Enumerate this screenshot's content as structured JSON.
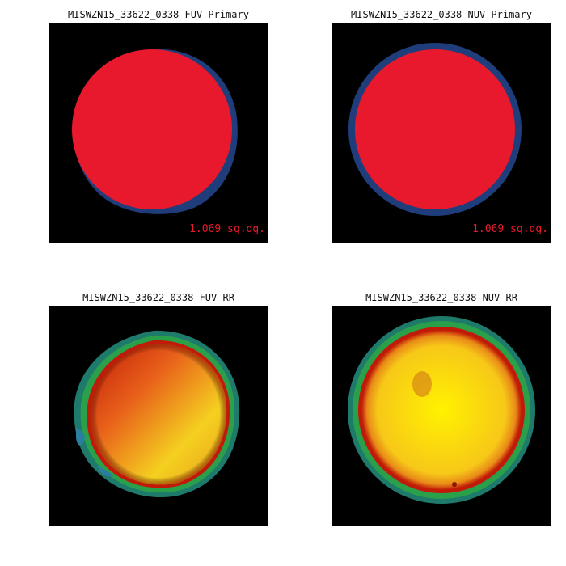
{
  "panels": [
    {
      "title": "MISWZN15_33622_0338 FUV Primary",
      "area_label": "1.069 sq.dg."
    },
    {
      "title": "MISWZN15_33622_0338 NUV Primary",
      "area_label": "1.069 sq.dg."
    },
    {
      "title": "MISWZN15_33622_0338 FUV RR"
    },
    {
      "title": "MISWZN15_33622_0338 NUV RR"
    }
  ],
  "colors": {
    "background": "#000000",
    "primary_disk": "#e8192c",
    "primary_ring": "#1f3d7a",
    "area_text": "#e8192c"
  }
}
